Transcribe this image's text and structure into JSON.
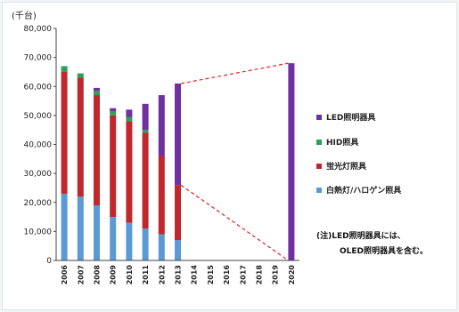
{
  "chart_data": {
    "type": "bar",
    "stacked": true,
    "unit_label": "(千台)",
    "categories": [
      "2006",
      "2007",
      "2008",
      "2009",
      "2010",
      "2011",
      "2012",
      "2013",
      "2014",
      "2015",
      "2016",
      "2017",
      "2018",
      "2019",
      "2020"
    ],
    "ylim": [
      0,
      80000
    ],
    "yticks": [
      "0",
      "10,000",
      "20,000",
      "30,000",
      "40,000",
      "50,000",
      "60,000",
      "70,000",
      "80,000"
    ],
    "ytick_values": [
      0,
      10000,
      20000,
      30000,
      40000,
      50000,
      60000,
      70000,
      80000
    ],
    "grid": false,
    "legend_placement": "right",
    "series": [
      {
        "name": "白熱灯/ハロゲン照具",
        "color": "#5b9bd5",
        "values": [
          23000,
          22000,
          19000,
          15000,
          13000,
          11000,
          9000,
          7000,
          null,
          null,
          null,
          null,
          null,
          null,
          0
        ]
      },
      {
        "name": "蛍光灯照具",
        "color": "#c0282d",
        "values": [
          42000,
          41000,
          38000,
          35000,
          35000,
          33000,
          27000,
          19000,
          null,
          null,
          null,
          null,
          null,
          null,
          0
        ]
      },
      {
        "name": "HID照具",
        "color": "#2ca05a",
        "values": [
          2000,
          1500,
          1500,
          1500,
          1500,
          1000,
          0,
          0,
          null,
          null,
          null,
          null,
          null,
          null,
          0
        ]
      },
      {
        "name": "LED照明器具",
        "color": "#7030a0",
        "values": [
          0,
          0,
          1000,
          1000,
          2500,
          9000,
          21000,
          35000,
          null,
          null,
          null,
          null,
          null,
          null,
          68000
        ]
      }
    ],
    "projection_lines": [
      {
        "from": {
          "x": "2013",
          "y": 61000
        },
        "to": {
          "x": "2020",
          "y": 68000
        },
        "style": "dashed",
        "color": "#d9262b"
      },
      {
        "from": {
          "x": "2013",
          "y": 26000
        },
        "to": {
          "x": "2020",
          "y": 0
        },
        "style": "dashed",
        "color": "#d9262b"
      }
    ],
    "note_lines": [
      "(注)LED照明器具には、",
      "OLED照明器具を含む。"
    ]
  }
}
